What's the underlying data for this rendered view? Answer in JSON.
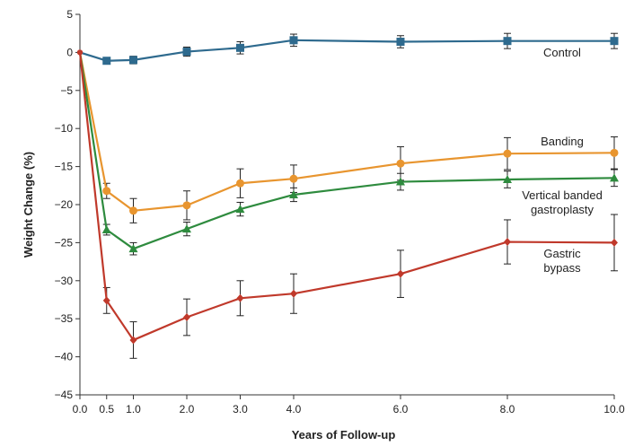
{
  "chart_data": {
    "type": "line",
    "title": "",
    "xlabel": "Years of Follow-up",
    "ylabel": "Weight Change (%)",
    "xlim": [
      0,
      10
    ],
    "ylim": [
      -45,
      5
    ],
    "x_ticks": [
      0,
      0.5,
      1,
      2,
      3,
      4,
      6,
      8,
      10
    ],
    "x_tick_labels": [
      "0.0",
      "0.5",
      "1.0",
      "2.0",
      "3.0",
      "4.0",
      "6.0",
      "8.0",
      "10.0"
    ],
    "y_ticks": [
      5,
      0,
      -5,
      -10,
      -15,
      -20,
      -25,
      -30,
      -35,
      -40,
      -45
    ],
    "y_tick_labels": [
      "5",
      "0",
      "−5",
      "−10",
      "−15",
      "−20",
      "−25",
      "−30",
      "−35",
      "−40",
      "−45"
    ],
    "grid": false,
    "legend": "inline labels at right",
    "series": [
      {
        "name": "Control",
        "label_lines": [
          "Control"
        ],
        "color": "#2e6a8e",
        "marker": "square",
        "x": [
          0,
          0.5,
          1,
          2,
          3,
          4,
          6,
          8,
          10
        ],
        "y": [
          0,
          -1.1,
          -1.0,
          0.1,
          0.6,
          1.6,
          1.4,
          1.5,
          1.5
        ],
        "err": [
          0,
          0.4,
          0.5,
          0.6,
          0.8,
          0.8,
          0.8,
          1.0,
          1.0
        ]
      },
      {
        "name": "Banding",
        "label_lines": [
          "Banding"
        ],
        "color": "#e8952f",
        "marker": "circle",
        "x": [
          0,
          0.5,
          1,
          2,
          3,
          4,
          6,
          8,
          10
        ],
        "y": [
          0,
          -18.2,
          -20.8,
          -20.1,
          -17.2,
          -16.6,
          -14.6,
          -13.3,
          -13.2
        ],
        "err": [
          0,
          1.0,
          1.6,
          1.9,
          1.9,
          1.8,
          2.2,
          2.1,
          2.1
        ]
      },
      {
        "name": "Vertical banded gastroplasty",
        "label_lines": [
          "Vertical banded",
          "gastroplasty"
        ],
        "color": "#2e8b3e",
        "marker": "triangle",
        "x": [
          0,
          0.5,
          1,
          2,
          3,
          4,
          6,
          8,
          10
        ],
        "y": [
          0,
          -23.3,
          -25.8,
          -23.2,
          -20.6,
          -18.7,
          -17.0,
          -16.7,
          -16.5
        ],
        "err": [
          0,
          0.7,
          0.8,
          0.9,
          0.9,
          0.9,
          1.1,
          1.1,
          1.1
        ]
      },
      {
        "name": "Gastric bypass",
        "label_lines": [
          "Gastric",
          "bypass"
        ],
        "color": "#c0392b",
        "marker": "diamond",
        "x": [
          0,
          0.5,
          1,
          2,
          3,
          4,
          6,
          8,
          10
        ],
        "y": [
          0,
          -32.6,
          -37.8,
          -34.8,
          -32.3,
          -31.7,
          -29.1,
          -24.9,
          -25.0
        ],
        "err": [
          0,
          1.7,
          2.4,
          2.4,
          2.3,
          2.6,
          3.1,
          2.9,
          3.7
        ]
      }
    ]
  }
}
